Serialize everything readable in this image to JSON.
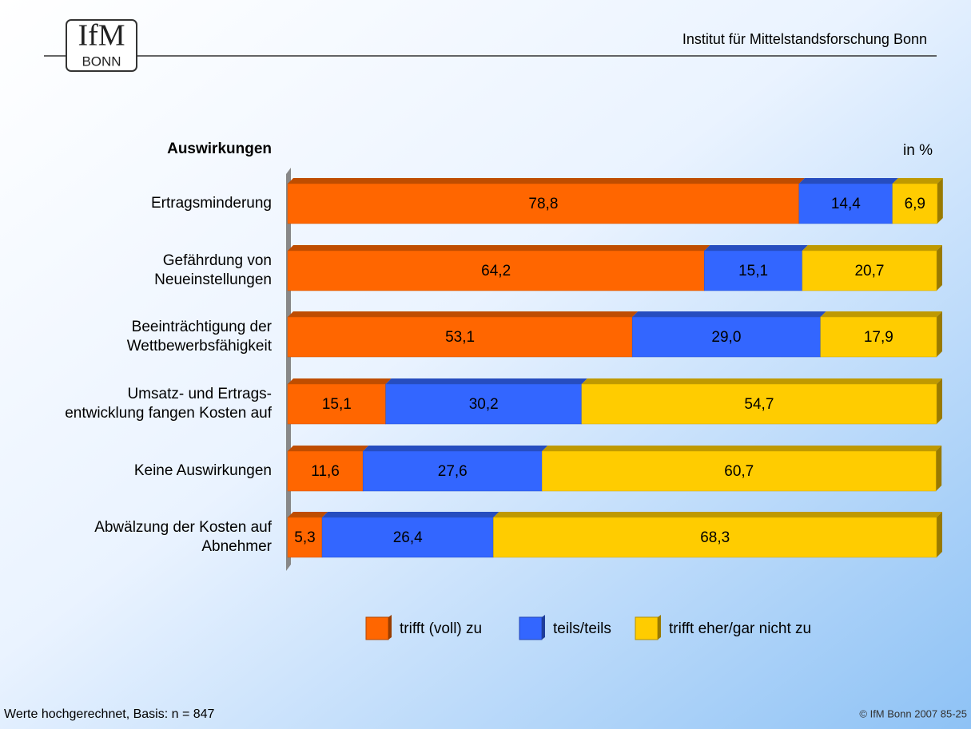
{
  "header": {
    "institute": "Institut für Mittelstandsforschung Bonn",
    "logo_top": "IfM",
    "logo_bottom": "BONN"
  },
  "chart_data": {
    "type": "stacked_bar_horizontal",
    "y_axis_title": "Auswirkungen",
    "unit_label": "in %",
    "categories": [
      "Ertragsminderung",
      "Gefährdung von\nNeueinstellungen",
      "Beeinträchtigung der\nWettbewerbsfähigkeit",
      "Umsatz- und Ertrags-\nentwicklung fangen Kosten auf",
      "Keine Auswirkungen",
      "Abwälzung der Kosten auf\nAbnehmer"
    ],
    "xlim": [
      0,
      100
    ],
    "series": [
      {
        "name": "trifft (voll) zu",
        "color": "#ff6600",
        "values": [
          78.8,
          64.2,
          53.1,
          15.1,
          11.6,
          5.3
        ],
        "value_labels": [
          "78,8",
          "64,2",
          "53,1",
          "15,1",
          "11,6",
          "5,3"
        ]
      },
      {
        "name": "teils/teils",
        "color": "#3366ff",
        "values": [
          14.4,
          15.1,
          29.0,
          30.2,
          27.6,
          26.4
        ],
        "value_labels": [
          "14,4",
          "15,1",
          "29,0",
          "30,2",
          "27,6",
          "26,4"
        ]
      },
      {
        "name": "trifft eher/gar nicht zu",
        "color": "#ffcc00",
        "values": [
          6.9,
          20.7,
          17.9,
          54.7,
          60.7,
          68.3
        ],
        "value_labels": [
          "6,9",
          "20,7",
          "17,9",
          "54,7",
          "60,7",
          "68,3"
        ]
      }
    ],
    "legend": "bottom"
  },
  "footer": {
    "note": "Werte hochgerechnet, Basis: n = 847",
    "copyright": "© IfM Bonn 2007 85-25"
  }
}
